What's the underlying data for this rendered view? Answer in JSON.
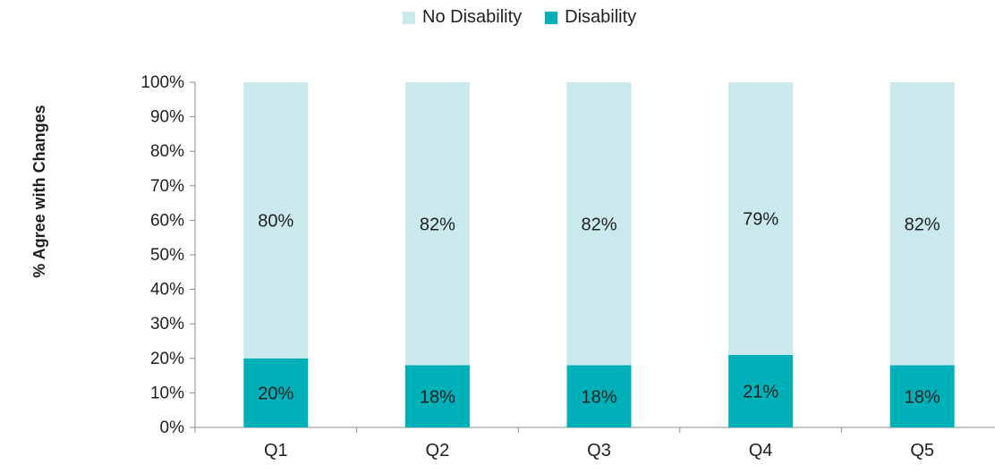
{
  "chart_data": {
    "type": "bar",
    "stacked": true,
    "categories": [
      "Q1",
      "Q2",
      "Q3",
      "Q4",
      "Q5"
    ],
    "series": [
      {
        "name": "Disability",
        "values": [
          20,
          18,
          18,
          21,
          18
        ],
        "color": "#00b0b9"
      },
      {
        "name": "No Disability",
        "values": [
          80,
          82,
          82,
          79,
          82
        ],
        "color": "#c9e9ec"
      }
    ],
    "data_labels": {
      "Disability": [
        "20%",
        "18%",
        "18%",
        "21%",
        "18%"
      ],
      "No Disability": [
        "80%",
        "82%",
        "82%",
        "79%",
        "82%"
      ]
    },
    "ylabel": "% Agree with Changes",
    "ylim": [
      0,
      100
    ],
    "yticks": [
      "0%",
      "10%",
      "20%",
      "30%",
      "40%",
      "50%",
      "60%",
      "70%",
      "80%",
      "90%",
      "100%"
    ],
    "grid": false,
    "legend": {
      "placement": "top",
      "entries": [
        "No Disability",
        "Disability"
      ]
    }
  }
}
